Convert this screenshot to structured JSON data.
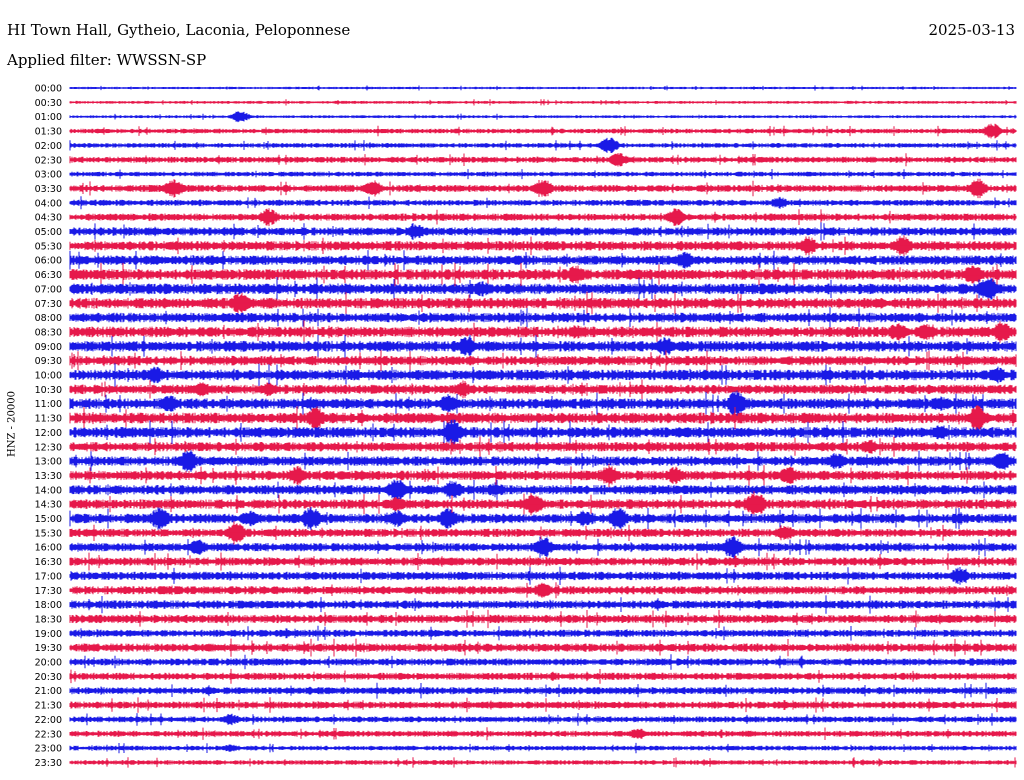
{
  "header": {
    "station": "HI Town Hall, Gytheio, Laconia, Peloponnese",
    "date": "2025-03-13",
    "filter": "Applied filter: WWSSN-SP"
  },
  "chart_data": {
    "type": "line",
    "title": "HI Town Hall, Gytheio, Laconia, Peloponnese",
    "ylabel": "HNZ - 20000",
    "xlabel": "",
    "row_labels": [
      "00:00",
      "00:30",
      "01:00",
      "01:30",
      "02:00",
      "02:30",
      "03:00",
      "03:30",
      "04:00",
      "04:30",
      "05:00",
      "05:30",
      "06:00",
      "06:30",
      "07:00",
      "07:30",
      "08:00",
      "08:30",
      "09:00",
      "09:30",
      "10:00",
      "10:30",
      "11:00",
      "11:30",
      "12:00",
      "12:30",
      "13:00",
      "13:30",
      "14:00",
      "14:30",
      "15:00",
      "15:30",
      "16:00",
      "16:30",
      "17:00",
      "17:30",
      "18:00",
      "18:30",
      "19:00",
      "19:30",
      "20:00",
      "20:30",
      "21:00",
      "21:30",
      "22:00",
      "22:30",
      "23:00",
      "23:30"
    ],
    "row_colors": [
      "#1a1ae6",
      "#e6194b"
    ],
    "trace_amplitude": [
      1.0,
      1.2,
      1.2,
      2.0,
      2.0,
      2.5,
      2.0,
      3.0,
      2.5,
      3.0,
      3.5,
      4.0,
      4.0,
      4.5,
      4.5,
      4.5,
      4.0,
      4.5,
      4.5,
      4.0,
      4.5,
      4.0,
      4.5,
      4.5,
      4.5,
      4.0,
      4.0,
      4.0,
      4.0,
      4.0,
      4.0,
      3.5,
      3.5,
      3.5,
      3.5,
      3.5,
      3.5,
      3.5,
      3.0,
      3.5,
      3.0,
      3.0,
      3.0,
      3.0,
      2.5,
      2.5,
      2.0,
      2.0
    ],
    "events": [
      [],
      [],
      [
        [
          0.18,
          6
        ]
      ],
      [
        [
          0.975,
          8
        ]
      ],
      [
        [
          0.57,
          9
        ]
      ],
      [
        [
          0.58,
          7
        ]
      ],
      [],
      [
        [
          0.11,
          10
        ],
        [
          0.32,
          9
        ],
        [
          0.5,
          10
        ],
        [
          0.96,
          10
        ]
      ],
      [
        [
          0.75,
          6
        ]
      ],
      [
        [
          0.21,
          9
        ],
        [
          0.64,
          9
        ]
      ],
      [
        [
          0.365,
          9
        ]
      ],
      [
        [
          0.78,
          10
        ],
        [
          0.88,
          11
        ]
      ],
      [
        [
          0.65,
          9
        ]
      ],
      [
        [
          0.535,
          11
        ],
        [
          0.955,
          11
        ]
      ],
      [
        [
          0.435,
          8
        ],
        [
          0.97,
          14
        ]
      ],
      [
        [
          0.18,
          12
        ]
      ],
      [],
      [
        [
          0.535,
          7
        ],
        [
          0.875,
          10
        ],
        [
          0.905,
          9
        ],
        [
          0.985,
          11
        ]
      ],
      [
        [
          0.42,
          11
        ],
        [
          0.63,
          10
        ]
      ],
      [],
      [
        [
          0.09,
          9
        ],
        [
          0.98,
          9
        ]
      ],
      [
        [
          0.14,
          8
        ],
        [
          0.21,
          7
        ],
        [
          0.415,
          9
        ]
      ],
      [
        [
          0.105,
          9
        ],
        [
          0.4,
          10
        ],
        [
          0.705,
          14
        ],
        [
          0.92,
          8
        ]
      ],
      [
        [
          0.26,
          12
        ],
        [
          0.96,
          13
        ]
      ],
      [
        [
          0.405,
          13
        ],
        [
          0.92,
          8
        ]
      ],
      [
        [
          0.845,
          8
        ]
      ],
      [
        [
          0.125,
          12
        ],
        [
          0.81,
          9
        ],
        [
          0.985,
          11
        ]
      ],
      [
        [
          0.24,
          10
        ],
        [
          0.57,
          12
        ],
        [
          0.64,
          9
        ],
        [
          0.76,
          10
        ]
      ],
      [
        [
          0.345,
          12
        ],
        [
          0.405,
          10
        ],
        [
          0.45,
          8
        ]
      ],
      [
        [
          0.345,
          8
        ],
        [
          0.49,
          12
        ],
        [
          0.725,
          14
        ]
      ],
      [
        [
          0.095,
          12
        ],
        [
          0.19,
          9
        ],
        [
          0.255,
          12
        ],
        [
          0.345,
          9
        ],
        [
          0.4,
          11
        ],
        [
          0.545,
          9
        ],
        [
          0.58,
          12
        ]
      ],
      [
        [
          0.175,
          12
        ],
        [
          0.755,
          9
        ]
      ],
      [
        [
          0.135,
          9
        ],
        [
          0.5,
          12
        ],
        [
          0.7,
          12
        ]
      ],
      [],
      [
        [
          0.94,
          9
        ]
      ],
      [
        [
          0.5,
          8
        ]
      ],
      [],
      [],
      [],
      [],
      [],
      [],
      [],
      [],
      [
        [
          0.17,
          6
        ]
      ],
      [
        [
          0.6,
          6
        ]
      ],
      [
        [
          0.17,
          4
        ]
      ],
      []
    ]
  }
}
